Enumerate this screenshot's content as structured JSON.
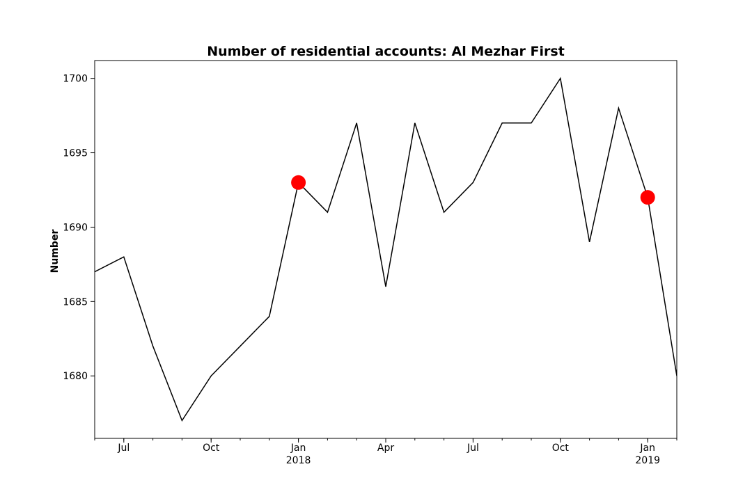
{
  "chart_data": {
    "type": "line",
    "title": "Number of residential accounts: Al Mezhar First",
    "xlabel": "",
    "ylabel": "Number",
    "x": [
      "2017-06",
      "2017-07",
      "2017-08",
      "2017-09",
      "2017-10",
      "2017-11",
      "2017-12",
      "2018-01",
      "2018-02",
      "2018-03",
      "2018-04",
      "2018-05",
      "2018-06",
      "2018-07",
      "2018-08",
      "2018-09",
      "2018-10",
      "2018-11",
      "2018-12",
      "2019-01",
      "2019-02"
    ],
    "series": [
      {
        "values": [
          1687,
          1688,
          1682,
          1677,
          1680,
          1682,
          1684,
          1693,
          1691,
          1697,
          1686,
          1697,
          1691,
          1693,
          1697,
          1697,
          1700,
          1689,
          1698,
          1692,
          1680
        ],
        "color": "#000000"
      }
    ],
    "highlight_points": [
      {
        "x": "2018-01",
        "y": 1693,
        "color": "#ff0000"
      },
      {
        "x": "2019-01",
        "y": 1692,
        "color": "#ff0000"
      }
    ],
    "xlim": [
      "2017-06",
      "2019-02"
    ],
    "ylim": [
      1675.8,
      1701.2
    ],
    "y_ticks": [
      "1680",
      "1685",
      "1690",
      "1695",
      "1700"
    ],
    "y_tick_values": [
      1680,
      1685,
      1690,
      1695,
      1700
    ],
    "x_ticks": [
      {
        "x": "2017-07",
        "label": "Jul",
        "sublabel": ""
      },
      {
        "x": "2017-10",
        "label": "Oct",
        "sublabel": ""
      },
      {
        "x": "2018-01",
        "label": "Jan",
        "sublabel": "2018"
      },
      {
        "x": "2018-04",
        "label": "Apr",
        "sublabel": ""
      },
      {
        "x": "2018-07",
        "label": "Jul",
        "sublabel": ""
      },
      {
        "x": "2018-10",
        "label": "Oct",
        "sublabel": ""
      },
      {
        "x": "2019-01",
        "label": "Jan",
        "sublabel": "2019"
      }
    ],
    "grid": false,
    "legend": "none"
  }
}
